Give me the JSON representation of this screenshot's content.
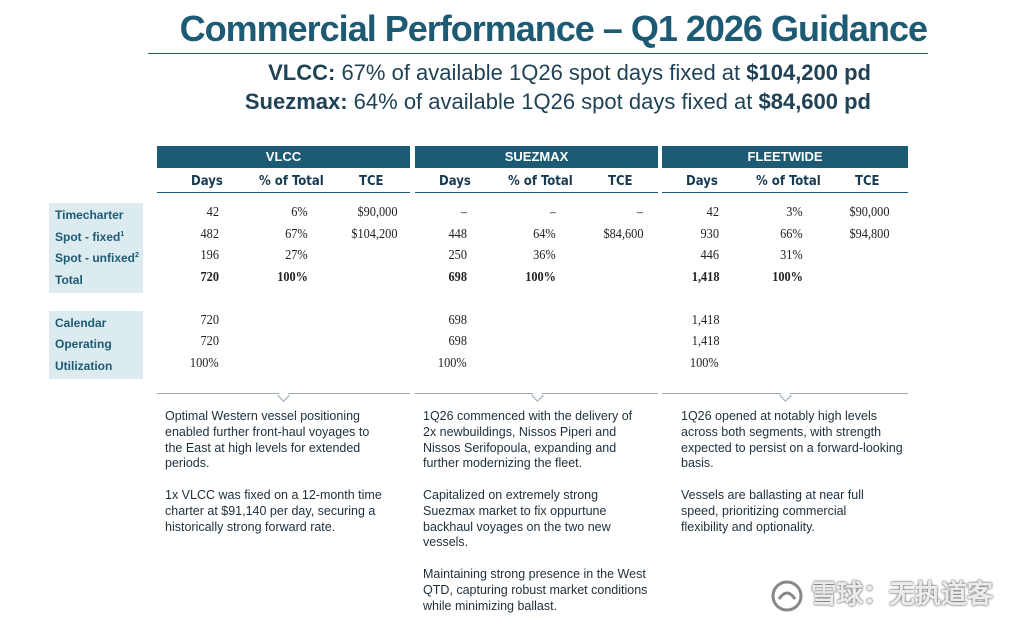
{
  "title": "Commercial Performance – Q1 2026 Guidance",
  "subtitle": {
    "line1_label": "VLCC:",
    "line1_text": " 67% of available 1Q26 spot days fixed at ",
    "line1_value": "$104,200 pd",
    "line2_label": "Suezmax:",
    "line2_text": " 64% of available 1Q26 spot days fixed at ",
    "line2_value": "$84,600 pd"
  },
  "groups": {
    "vlcc": "VLCC",
    "suezmax": "SUEZMAX",
    "fleetwide": "FLEETWIDE"
  },
  "columns": {
    "days": "Days",
    "pct": "% of Total",
    "tce": "TCE"
  },
  "row_labels": {
    "timecharter": "Timecharter",
    "spot_fixed": "Spot - fixed",
    "spot_fixed_sup": "1",
    "spot_unfixed": "Spot - unfixed",
    "spot_unfixed_sup": "2",
    "total": "Total",
    "calendar": "Calendar",
    "operating": "Operating",
    "utilization": "Utilization"
  },
  "vlcc": {
    "timecharter": [
      "42",
      "6%",
      "$90,000"
    ],
    "spot_fixed": [
      "482",
      "67%",
      "$104,200"
    ],
    "spot_unfixed": [
      "196",
      "27%",
      ""
    ],
    "total": [
      "720",
      "100%",
      ""
    ],
    "calendar": "720",
    "operating": "720",
    "utilization": "100%"
  },
  "suezmax": {
    "timecharter": [
      "–",
      "–",
      "–"
    ],
    "spot_fixed": [
      "448",
      "64%",
      "$84,600"
    ],
    "spot_unfixed": [
      "250",
      "36%",
      ""
    ],
    "total": [
      "698",
      "100%",
      ""
    ],
    "calendar": "698",
    "operating": "698",
    "utilization": "100%"
  },
  "fleetwide": {
    "timecharter": [
      "42",
      "3%",
      "$90,000"
    ],
    "spot_fixed": [
      "930",
      "66%",
      "$94,800"
    ],
    "spot_unfixed": [
      "446",
      "31%",
      ""
    ],
    "total": [
      "1,418",
      "100%",
      ""
    ],
    "calendar": "1,418",
    "operating": "1,418",
    "utilization": "100%"
  },
  "commentary": {
    "vlcc_1": "Optimal Western vessel positioning enabled further  front-haul voyages to the East at high levels for extended periods.",
    "vlcc_2": "1x VLCC was fixed on a 12-month time charter at $91,140 per day, securing a historically strong forward rate.",
    "suezmax_1": "1Q26 commenced with the delivery of 2x newbuildings, Nissos Piperi and Nissos Serifopoula, expanding and further modernizing the fleet.",
    "suezmax_2": "Capitalized on extremely strong Suezmax market to fix oppurtune backhaul voyages on the two new vessels.",
    "suezmax_3": "Maintaining strong presence in the West QTD, capturing robust market conditions while minimizing ballast.",
    "fleet_1": "1Q26 opened at notably high levels across both segments, with strength expected to persist on a forward-looking basis.",
    "fleet_2": "Vessels are ballasting at near full speed, prioritizing commercial flexibility and optionality."
  },
  "watermark": "雪球：无执道客"
}
